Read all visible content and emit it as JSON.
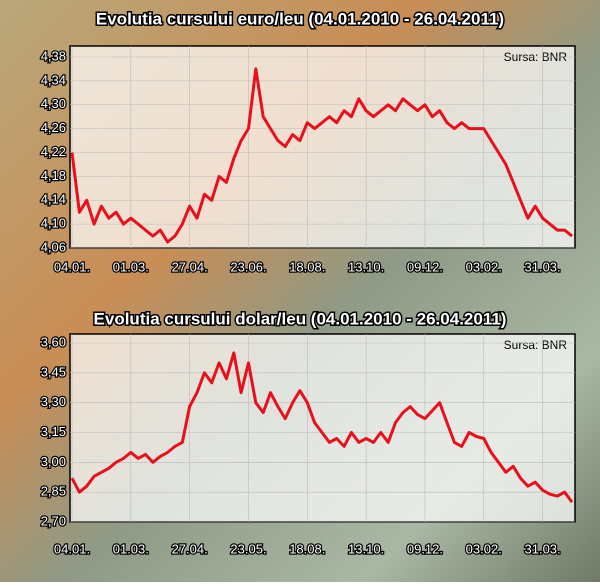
{
  "chart_data": [
    {
      "type": "line",
      "title": "Evolutia cursului euro/leu (04.01.2010 - 26.04.2011)",
      "annotation": "Sursa: BNR",
      "categories": [
        "04.01.",
        null,
        null,
        null,
        null,
        null,
        null,
        null,
        "01.03.",
        null,
        null,
        null,
        null,
        null,
        null,
        null,
        "27.04.",
        null,
        null,
        null,
        null,
        null,
        null,
        null,
        "23.06.",
        null,
        null,
        null,
        null,
        null,
        null,
        null,
        "18.08.",
        null,
        null,
        null,
        null,
        null,
        null,
        null,
        "13.10.",
        null,
        null,
        null,
        null,
        null,
        null,
        null,
        "09.12.",
        null,
        null,
        null,
        null,
        null,
        null,
        null,
        "03.02.",
        null,
        null,
        null,
        null,
        null,
        null,
        null,
        "31.03.",
        null,
        null,
        null,
        null
      ],
      "values": [
        4.22,
        4.12,
        4.14,
        4.1,
        4.13,
        4.11,
        4.12,
        4.1,
        4.11,
        4.1,
        4.09,
        4.08,
        4.09,
        4.07,
        4.08,
        4.1,
        4.13,
        4.11,
        4.15,
        4.14,
        4.18,
        4.17,
        4.21,
        4.24,
        4.26,
        4.36,
        4.28,
        4.26,
        4.24,
        4.23,
        4.25,
        4.24,
        4.27,
        4.26,
        4.27,
        4.28,
        4.27,
        4.29,
        4.28,
        4.31,
        4.29,
        4.28,
        4.29,
        4.3,
        4.29,
        4.31,
        4.3,
        4.29,
        4.3,
        4.28,
        4.29,
        4.27,
        4.26,
        4.27,
        4.26,
        4.26,
        4.26,
        4.24,
        4.22,
        4.2,
        4.17,
        4.14,
        4.11,
        4.13,
        4.11,
        4.1,
        4.09,
        4.09,
        4.08
      ],
      "color": "#e8101a",
      "ylim": [
        4.06,
        4.38
      ],
      "yticks": [
        {
          "value": 4.06,
          "label": "4,06"
        },
        {
          "value": 4.1,
          "label": "4,10"
        },
        {
          "value": 4.14,
          "label": "4,14"
        },
        {
          "value": 4.18,
          "label": "4,18"
        },
        {
          "value": 4.22,
          "label": "4,22"
        },
        {
          "value": 4.26,
          "label": "4,26"
        },
        {
          "value": 4.3,
          "label": "4,30"
        },
        {
          "value": 4.34,
          "label": "4,34"
        },
        {
          "value": 4.38,
          "label": "4,38"
        }
      ],
      "grid": true
    },
    {
      "type": "line",
      "title": "Evolutia cursului dolar/leu (04.01.2010 - 26.04.2011)",
      "annotation": "Sursa: BNR",
      "categories": [
        "04.01.",
        null,
        null,
        null,
        null,
        null,
        null,
        null,
        "01.03.",
        null,
        null,
        null,
        null,
        null,
        null,
        null,
        "27.04.",
        null,
        null,
        null,
        null,
        null,
        null,
        null,
        "23.05.",
        null,
        null,
        null,
        null,
        null,
        null,
        null,
        "18.08.",
        null,
        null,
        null,
        null,
        null,
        null,
        null,
        "13.10.",
        null,
        null,
        null,
        null,
        null,
        null,
        null,
        "09.12.",
        null,
        null,
        null,
        null,
        null,
        null,
        null,
        "03.02.",
        null,
        null,
        null,
        null,
        null,
        null,
        null,
        "31.03.",
        null,
        null,
        null,
        null
      ],
      "values": [
        2.92,
        2.85,
        2.88,
        2.93,
        2.95,
        2.97,
        3.0,
        3.02,
        3.05,
        3.02,
        3.04,
        3.0,
        3.03,
        3.05,
        3.08,
        3.1,
        3.28,
        3.35,
        3.45,
        3.4,
        3.5,
        3.42,
        3.55,
        3.35,
        3.5,
        3.3,
        3.25,
        3.35,
        3.28,
        3.22,
        3.3,
        3.36,
        3.3,
        3.2,
        3.15,
        3.1,
        3.12,
        3.08,
        3.15,
        3.1,
        3.12,
        3.1,
        3.15,
        3.1,
        3.2,
        3.25,
        3.28,
        3.24,
        3.22,
        3.26,
        3.3,
        3.2,
        3.1,
        3.08,
        3.15,
        3.13,
        3.12,
        3.05,
        3.0,
        2.95,
        2.98,
        2.92,
        2.88,
        2.9,
        2.86,
        2.84,
        2.83,
        2.85,
        2.8
      ],
      "color": "#e8101a",
      "ylim": [
        2.7,
        3.6
      ],
      "yticks": [
        {
          "value": 2.7,
          "label": "2,70"
        },
        {
          "value": 2.85,
          "label": "2,85"
        },
        {
          "value": 3.0,
          "label": "3,00"
        },
        {
          "value": 3.15,
          "label": "3,15"
        },
        {
          "value": 3.3,
          "label": "3,30"
        },
        {
          "value": 3.45,
          "label": "3,45"
        },
        {
          "value": 3.6,
          "label": "3,60"
        }
      ],
      "grid": true
    }
  ]
}
